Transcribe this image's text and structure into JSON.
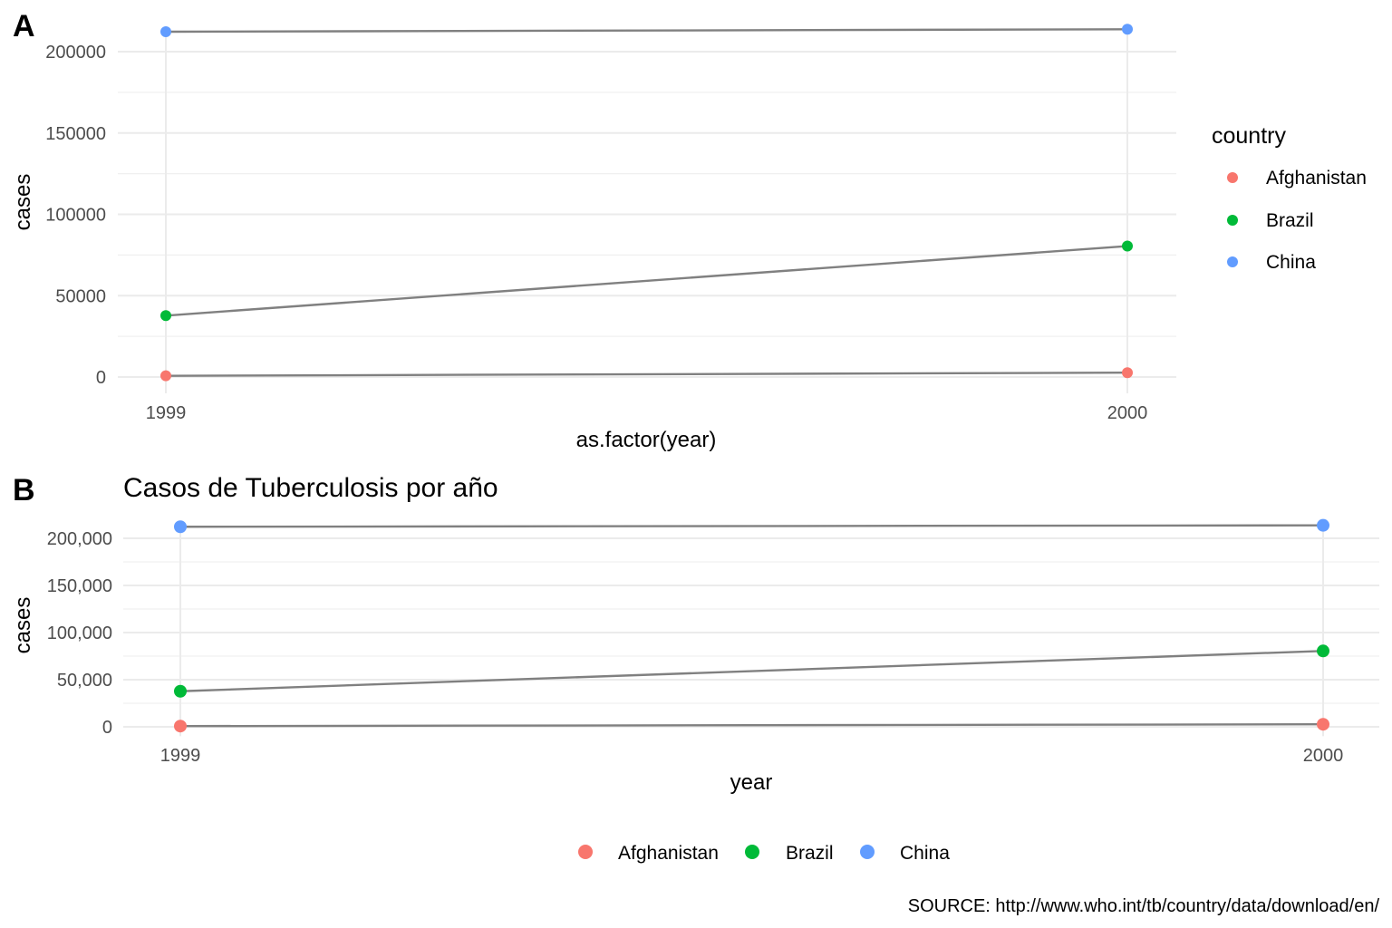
{
  "panel_a": {
    "tag": "A",
    "xlabel": "as.factor(year)",
    "ylabel": "cases",
    "y_tick_labels": [
      "0",
      "50000",
      "100000",
      "150000",
      "200000"
    ],
    "legend": {
      "title": "country"
    }
  },
  "panel_b": {
    "tag": "B",
    "title": "Casos de Tuberculosis por año",
    "xlabel": "year",
    "ylabel": "cases",
    "y_tick_labels": [
      "0",
      "50,000",
      "100,000",
      "150,000",
      "200,000"
    ]
  },
  "source": "SOURCE: http://www.who.int/tb/country/data/download/en/",
  "chart_data": [
    {
      "type": "line",
      "title": "",
      "xlabel": "as.factor(year)",
      "ylabel": "cases",
      "x": [
        "1999",
        "2000"
      ],
      "y_ticks": [
        0,
        50000,
        100000,
        150000,
        200000
      ],
      "ylim": [
        -10000,
        215000
      ],
      "grid": true,
      "legend_position": "right",
      "legend_title": "country",
      "series": [
        {
          "name": "Afghanistan",
          "color": "#F8766D",
          "values": [
            745,
            2666
          ]
        },
        {
          "name": "Brazil",
          "color": "#00BA38",
          "values": [
            37737,
            80488
          ]
        },
        {
          "name": "China",
          "color": "#619CFF",
          "values": [
            212258,
            213766
          ]
        }
      ],
      "line_color": "#808080"
    },
    {
      "type": "line",
      "title": "Casos de Tuberculosis por año",
      "xlabel": "year",
      "ylabel": "cases",
      "x": [
        "1999",
        "2000"
      ],
      "y_ticks": [
        0,
        50000,
        100000,
        150000,
        200000
      ],
      "ylim": [
        -10000,
        215000
      ],
      "grid": true,
      "legend_position": "bottom",
      "series": [
        {
          "name": "Afghanistan",
          "color": "#F8766D",
          "values": [
            745,
            2666
          ]
        },
        {
          "name": "Brazil",
          "color": "#00BA38",
          "values": [
            37737,
            80488
          ]
        },
        {
          "name": "China",
          "color": "#619CFF",
          "values": [
            212258,
            213766
          ]
        }
      ],
      "line_color": "#808080"
    }
  ]
}
